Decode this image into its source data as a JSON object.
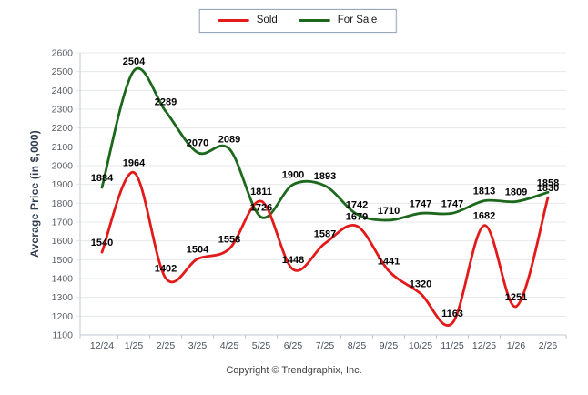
{
  "legend": {
    "items": [
      {
        "label": "Sold",
        "color": "#e31a1a"
      },
      {
        "label": "For Sale",
        "color": "#1d681d"
      }
    ]
  },
  "chart_data": {
    "type": "line",
    "categories": [
      "12/24",
      "1/25",
      "2/25",
      "3/25",
      "4/25",
      "5/25",
      "6/25",
      "7/25",
      "8/25",
      "9/25",
      "10/25",
      "11/25",
      "12/25",
      "1/26",
      "2/26"
    ],
    "series": [
      {
        "name": "Sold",
        "color": "#e31a1a",
        "values": [
          1540,
          1964,
          1402,
          1504,
          1558,
          1811,
          1448,
          1587,
          1679,
          1441,
          1320,
          1163,
          1682,
          1251,
          1830
        ]
      },
      {
        "name": "For Sale",
        "color": "#1d681d",
        "values": [
          1884,
          2504,
          2289,
          2070,
          2089,
          1726,
          1900,
          1893,
          1742,
          1710,
          1747,
          1747,
          1813,
          1809,
          1858
        ]
      }
    ],
    "title": "",
    "xlabel": "",
    "ylabel": "Average Price (in $,000)",
    "ylim": [
      1100,
      2600
    ],
    "ytick_step": 100,
    "grid": true,
    "legend_position": "top-center",
    "data_labels": true
  },
  "footer": {
    "copyright": "Copyright © Trendgraphix, Inc."
  }
}
